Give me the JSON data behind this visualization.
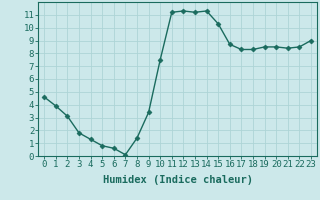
{
  "x": [
    0,
    1,
    2,
    3,
    4,
    5,
    6,
    7,
    8,
    9,
    10,
    11,
    12,
    13,
    14,
    15,
    16,
    17,
    18,
    19,
    20,
    21,
    22,
    23
  ],
  "y": [
    4.6,
    3.9,
    3.1,
    1.8,
    1.3,
    0.8,
    0.6,
    0.1,
    1.4,
    3.4,
    7.5,
    11.2,
    11.3,
    11.2,
    11.3,
    10.3,
    8.7,
    8.3,
    8.3,
    8.5,
    8.5,
    8.4,
    8.5,
    9.0
  ],
  "line_color": "#1a6b5e",
  "marker": "D",
  "marker_size": 2.5,
  "bg_color": "#cce8ea",
  "grid_color": "#aed4d6",
  "xlabel": "Humidex (Indice chaleur)",
  "xlim": [
    -0.5,
    23.5
  ],
  "ylim": [
    0,
    12
  ],
  "yticks": [
    0,
    1,
    2,
    3,
    4,
    5,
    6,
    7,
    8,
    9,
    10,
    11
  ],
  "xticks": [
    0,
    1,
    2,
    3,
    4,
    5,
    6,
    7,
    8,
    9,
    10,
    11,
    12,
    13,
    14,
    15,
    16,
    17,
    18,
    19,
    20,
    21,
    22,
    23
  ],
  "xlabel_fontsize": 7.5,
  "tick_fontsize": 6.5,
  "tick_color": "#1a6b5e",
  "axis_color": "#1a6b5e",
  "linewidth": 1.0
}
